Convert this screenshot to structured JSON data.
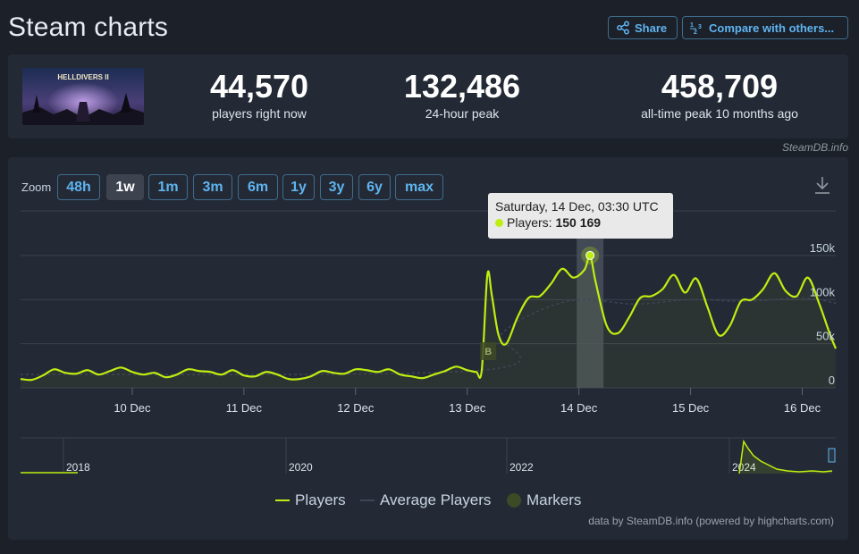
{
  "header": {
    "title": "Steam charts",
    "share_label": "Share",
    "compare_label": "Compare with others..."
  },
  "stats": {
    "game_logo_text": "HELLDIVERS II",
    "current": {
      "value": "44,570",
      "label": "players right now"
    },
    "peak24": {
      "value": "132,486",
      "label": "24-hour peak"
    },
    "alltime": {
      "value": "458,709",
      "label": "all-time peak 10 months ago"
    }
  },
  "source_credit": "SteamDB.info",
  "zoom": {
    "label": "Zoom",
    "options": [
      "48h",
      "1w",
      "1m",
      "3m",
      "6m",
      "1y",
      "3y",
      "6y",
      "max"
    ],
    "selected": "1w"
  },
  "tooltip": {
    "date": "Saturday, 14 Dec, 03:30 UTC",
    "series_label": "Players:",
    "value": "150 169"
  },
  "legend": {
    "players": "Players",
    "average": "Average Players",
    "markers": "Markers"
  },
  "credits": "data by SteamDB.info (powered by highcharts.com)",
  "colors": {
    "players_line": "#beee11",
    "average_line": "#3d4656",
    "accent_blue": "#5fb4f0"
  },
  "chart_data": {
    "type": "line",
    "x_tick_labels": [
      "10 Dec",
      "11 Dec",
      "12 Dec",
      "13 Dec",
      "14 Dec",
      "15 Dec",
      "16 Dec"
    ],
    "y_tick_labels": [
      "0",
      "50k",
      "100k",
      "150k"
    ],
    "ylim": [
      0,
      150000
    ],
    "marker_label": "B",
    "navigator_labels": [
      "2018",
      "2020",
      "2022",
      "2024"
    ],
    "series": [
      {
        "name": "Players",
        "x_unit": "days since 9 Dec 00:00 UTC",
        "x": [
          0.0,
          0.1,
          0.2,
          0.3,
          0.4,
          0.5,
          0.6,
          0.7,
          0.8,
          0.9,
          1.0,
          1.1,
          1.2,
          1.3,
          1.4,
          1.5,
          1.6,
          1.7,
          1.8,
          1.9,
          2.0,
          2.1,
          2.2,
          2.3,
          2.4,
          2.5,
          2.6,
          2.7,
          2.8,
          2.9,
          3.0,
          3.1,
          3.2,
          3.3,
          3.4,
          3.5,
          3.6,
          3.7,
          3.8,
          3.9,
          4.0,
          4.08,
          4.13,
          4.18,
          4.22,
          4.28,
          4.35,
          4.45,
          4.55,
          4.65,
          4.75,
          4.85,
          4.95,
          5.05,
          5.1,
          5.15,
          5.25,
          5.35,
          5.45,
          5.55,
          5.65,
          5.75,
          5.85,
          5.95,
          6.05,
          6.15,
          6.25,
          6.35,
          6.45,
          6.55,
          6.65,
          6.75,
          6.85,
          6.95,
          7.05,
          7.15,
          7.25,
          7.3
        ],
        "values": [
          10000,
          9000,
          14000,
          21000,
          17000,
          16000,
          20000,
          15000,
          19000,
          23000,
          18000,
          15000,
          17000,
          12000,
          15000,
          21000,
          19000,
          18000,
          15000,
          20000,
          14000,
          13000,
          18000,
          15000,
          10000,
          10000,
          13000,
          19000,
          17000,
          16000,
          21000,
          20000,
          18000,
          21000,
          15000,
          13000,
          11000,
          15000,
          19000,
          24000,
          20000,
          18000,
          20000,
          128000,
          105000,
          60000,
          50000,
          80000,
          102000,
          104000,
          118000,
          135000,
          125000,
          134000,
          150169,
          120000,
          70000,
          62000,
          80000,
          102000,
          104000,
          112000,
          128000,
          108000,
          124000,
          92000,
          60000,
          70000,
          98000,
          100000,
          112000,
          130000,
          110000,
          104000,
          125000,
          96000,
          60000,
          44570
        ]
      },
      {
        "name": "Average Players",
        "x": [
          0.0,
          4.13,
          4.3,
          4.6,
          5.0,
          5.5,
          6.0,
          6.5,
          7.0,
          7.3
        ],
        "values": [
          15000,
          20000,
          60000,
          85000,
          100000,
          95000,
          100000,
          98000,
          102000,
          96000
        ]
      }
    ]
  }
}
